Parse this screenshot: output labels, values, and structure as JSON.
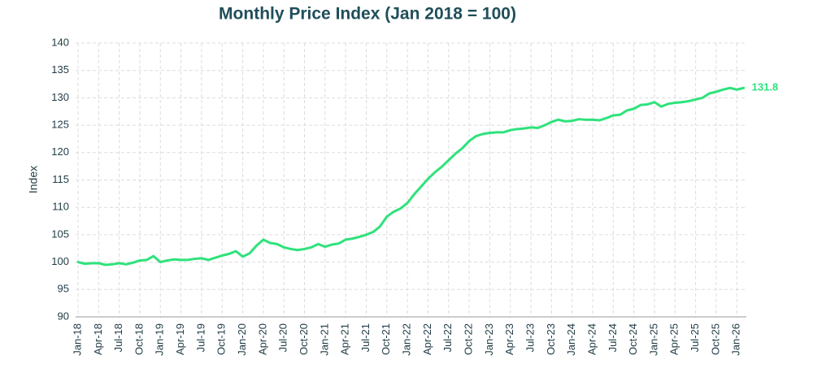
{
  "chart_data": {
    "type": "line",
    "title": "Monthly Price Index (Jan 2018 = 100)",
    "y_label": "Index",
    "categories": [
      "Jan-18",
      null,
      null,
      "Apr-18",
      null,
      null,
      "Jul-18",
      null,
      null,
      "Oct-18",
      null,
      null,
      "Jan-19",
      null,
      null,
      "Apr-19",
      null,
      null,
      "Jul-19",
      null,
      null,
      "Oct-19",
      null,
      null,
      "Jan-20",
      null,
      null,
      "Apr-20",
      null,
      null,
      "Jul-20",
      null,
      null,
      "Oct-20",
      null,
      null,
      "Jan-21",
      null,
      null,
      "Apr-21",
      null,
      null,
      "Jul-21",
      null,
      null,
      "Oct-21",
      null,
      null,
      "Jan-22",
      null,
      null,
      "Apr-22",
      null,
      null,
      "Jul-22",
      null,
      null,
      "Oct-22",
      null,
      null,
      "Jan-23",
      null,
      null,
      "Apr-23",
      null,
      null,
      "Jul-23",
      null,
      null,
      "Oct-23",
      null,
      null,
      "Jan-24",
      null,
      null,
      "Apr-24",
      null,
      null,
      "Jul-24",
      null,
      null,
      "Oct-24",
      null,
      null,
      "Jan-25",
      null,
      null,
      "Apr-25",
      null,
      null,
      "Jul-25",
      null,
      null,
      "Oct-25",
      null,
      null,
      "Jan-26",
      null
    ],
    "values": [
      100.0,
      99.7,
      99.8,
      99.8,
      99.5,
      99.6,
      99.8,
      99.6,
      99.9,
      100.3,
      100.4,
      101.1,
      100.0,
      100.3,
      100.5,
      100.4,
      100.4,
      100.6,
      100.7,
      100.4,
      100.8,
      101.2,
      101.5,
      102.0,
      101.0,
      101.6,
      103.0,
      104.1,
      103.5,
      103.3,
      102.7,
      102.4,
      102.2,
      102.4,
      102.7,
      103.3,
      102.8,
      103.2,
      103.4,
      104.1,
      104.3,
      104.6,
      105.0,
      105.5,
      106.5,
      108.3,
      109.2,
      109.8,
      110.8,
      112.4,
      113.8,
      115.2,
      116.4,
      117.4,
      118.6,
      119.8,
      120.8,
      122.1,
      123.0,
      123.4,
      123.6,
      123.7,
      123.7,
      124.1,
      124.3,
      124.4,
      124.6,
      124.5,
      125.0,
      125.6,
      126.0,
      125.7,
      125.8,
      126.1,
      126.0,
      126.0,
      125.9,
      126.3,
      126.8,
      126.9,
      127.7,
      128.0,
      128.7,
      128.8,
      129.2,
      128.4,
      128.9,
      129.1,
      129.2,
      129.4,
      129.7,
      130.0,
      130.8,
      131.1,
      131.5,
      131.8,
      131.5,
      131.8
    ],
    "color": "#2ee27c",
    "ylim": [
      90,
      140
    ],
    "yticks": [
      90,
      95,
      100,
      105,
      110,
      115,
      120,
      125,
      130,
      135,
      140
    ],
    "grid": true
  }
}
